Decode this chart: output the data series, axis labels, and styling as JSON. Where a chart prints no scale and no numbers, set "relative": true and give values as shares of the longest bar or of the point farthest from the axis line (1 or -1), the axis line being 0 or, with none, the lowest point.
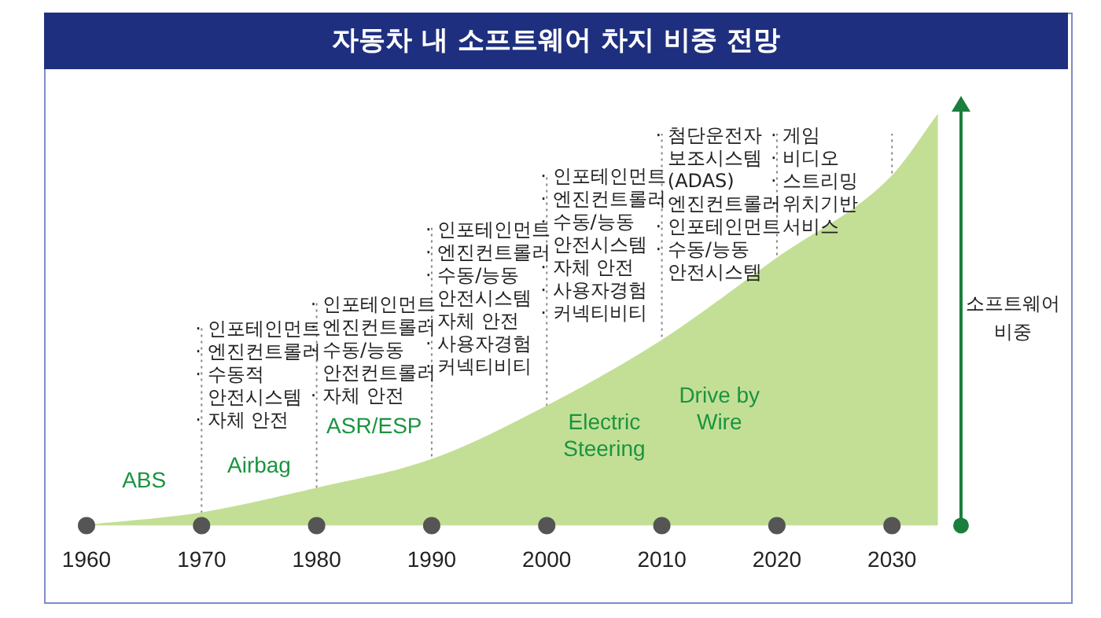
{
  "chart_data": {
    "type": "area",
    "title": "자동차 내 소프트웨어 차지 비중 전망",
    "ylabel": "소프트웨어\n비중",
    "relative": true,
    "x": [
      1960,
      1970,
      1980,
      1990,
      2000,
      2010,
      2020,
      2030,
      2034
    ],
    "xlim": [
      1960,
      2036
    ],
    "xticks": [
      1960,
      1970,
      1980,
      1990,
      2000,
      2010,
      2020,
      2030
    ],
    "series": [
      {
        "color": "#c3df96",
        "values": [
          0,
          0.03,
          0.09,
          0.16,
          0.29,
          0.45,
          0.65,
          0.85,
          1
        ]
      },
      {
        "type": "scatter",
        "color": "#555555",
        "marker": "circle",
        "x": [
          1960,
          1970,
          1980,
          1990,
          2000,
          2010,
          2020,
          2030
        ],
        "values": [
          0,
          0,
          0,
          0,
          0,
          0,
          0,
          0
        ]
      }
    ],
    "ref_lines": [
      {
        "axis": "x",
        "value": 1970,
        "color": "#888888",
        "line_style": "dotted",
        "label": "· 인포테인먼트\n· 엔진컨트롤러\n· 수동적\n  안전시스템\n· 자체 안전"
      },
      {
        "axis": "x",
        "value": 1980,
        "color": "#888888",
        "line_style": "dotted",
        "label": "· 인포테인먼트\n· 엔진컨트롤러\n· 수동/능동\n  안전컨트롤러\n· 자체 안전"
      },
      {
        "axis": "x",
        "value": 1990,
        "color": "#888888",
        "line_style": "dotted",
        "label": "· 인포테인먼트\n· 엔진컨트롤러\n· 수동/능동\n  안전시스템\n· 자체 안전\n· 사용자경험\n· 커넥티비티"
      },
      {
        "axis": "x",
        "value": 2000,
        "color": "#888888",
        "line_style": "dotted",
        "label": "· 인포테인먼트\n· 엔진컨트롤러\n· 수동/능동\n  안전시스템\n· 자체 안전\n· 사용자경험\n· 커넥티비티"
      },
      {
        "axis": "x",
        "value": 2010,
        "color": "#888888",
        "line_style": "dotted",
        "label": "· 첨단운전자\n  보조시스템\n  (ADAS)\n· 엔진컨트롤러\n· 인포테인먼트\n· 수동/능동\n  안전시스템"
      },
      {
        "axis": "x",
        "value": 2020,
        "color": "#888888",
        "line_style": "dotted",
        "label": "· 게임\n· 비디오\n· 스트리밍\n· 위치기반\n  서비스"
      },
      {
        "axis": "x",
        "value": 2030,
        "color": "#888888",
        "line_style": "dotted"
      }
    ],
    "annotations": [
      "ABS",
      "Airbag",
      "ASR/ESP",
      "Electric\nSteering",
      "Drive by\nWire"
    ],
    "grid": false,
    "legend": false,
    "marker": "none"
  }
}
